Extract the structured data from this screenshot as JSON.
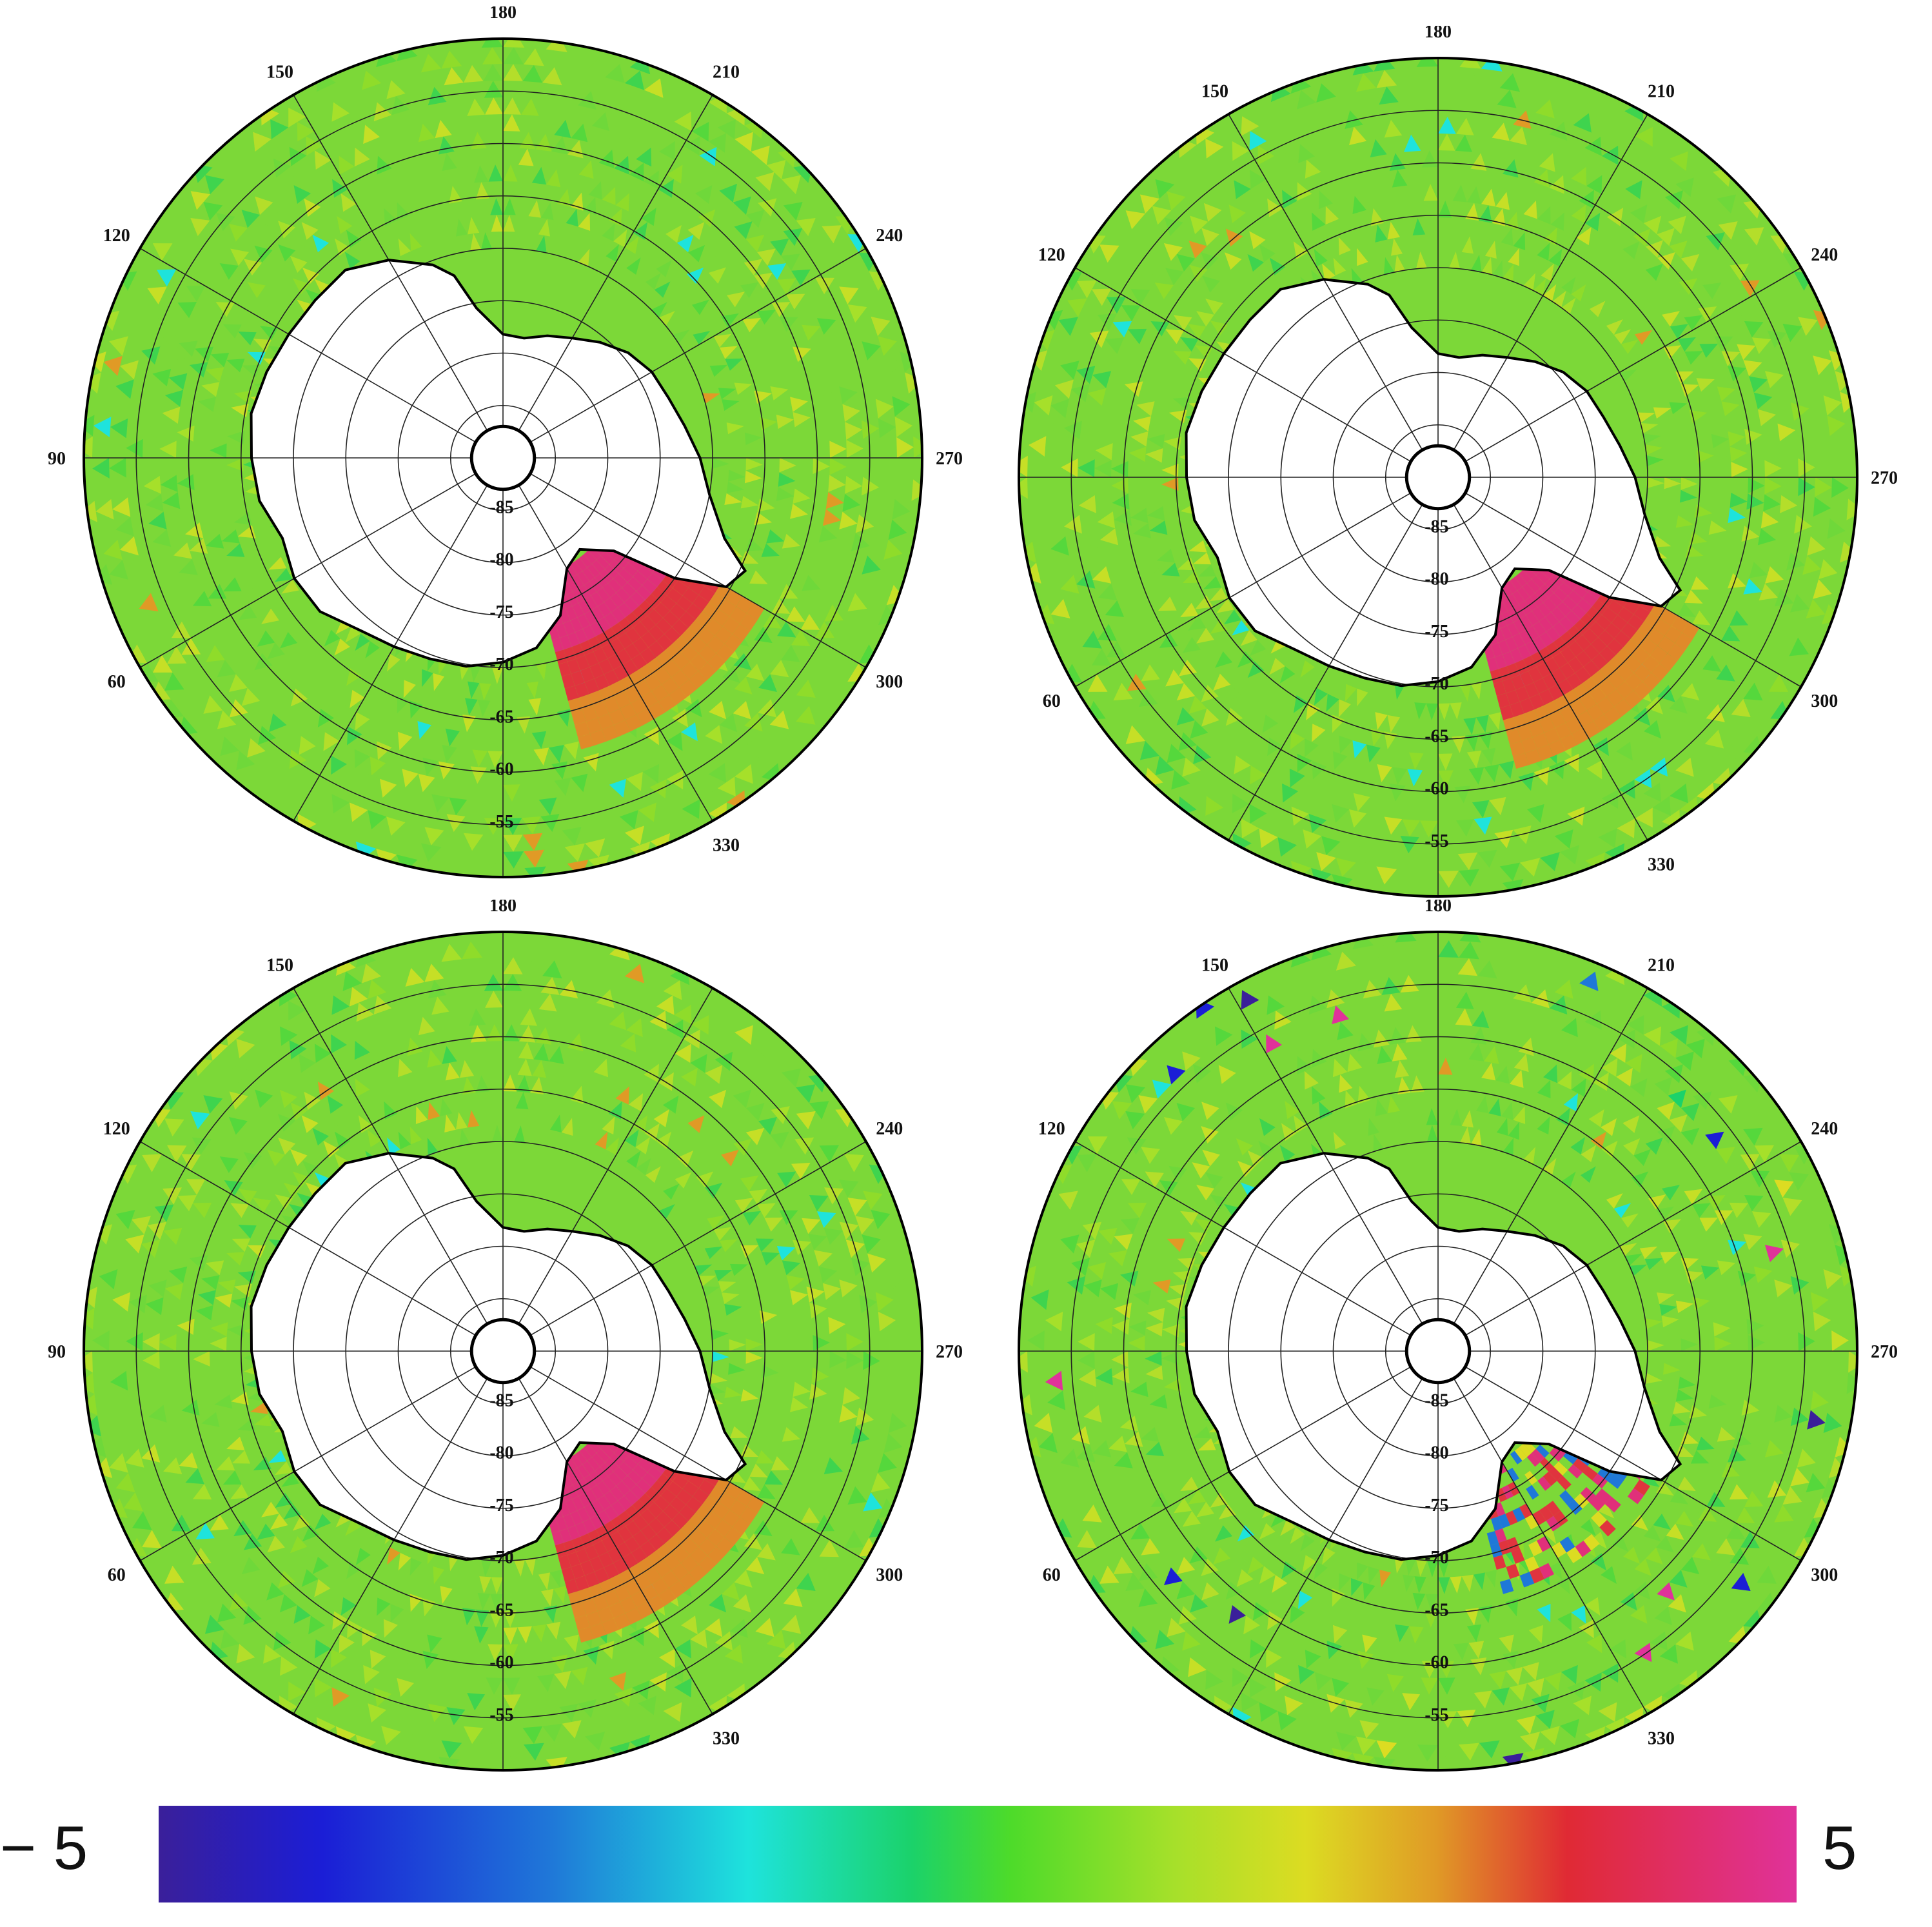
{
  "panels": [
    {
      "id": "top-left",
      "lon_labels": [
        "180",
        "210",
        "240",
        "270",
        "300",
        "330",
        "60",
        "90",
        "120",
        "150"
      ],
      "anomaly": "strong"
    },
    {
      "id": "top-right",
      "lon_labels": [
        "180",
        "210",
        "240",
        "270",
        "300",
        "330",
        "60",
        "120",
        "150"
      ],
      "anomaly": "strong"
    },
    {
      "id": "bottom-left",
      "lon_labels": [
        "180",
        "240",
        "270",
        "300",
        "330",
        "60",
        "90",
        "120",
        "150"
      ],
      "anomaly": "strong"
    },
    {
      "id": "bottom-right",
      "lon_labels": [
        "180",
        "210",
        "240",
        "270",
        "300",
        "330",
        "60",
        "120",
        "150"
      ],
      "anomaly": "noisy"
    }
  ],
  "lat_labels": [
    "-85",
    "-80",
    "-75",
    "-70",
    "-65",
    "-60",
    "-55"
  ],
  "colorbar": {
    "min_label": "− 5",
    "max_label": "5",
    "colors": [
      "#3a1f9a",
      "#1b1ed6",
      "#1f78d8",
      "#1ee3dc",
      "#1bd26a",
      "#4ddb2a",
      "#a6e02a",
      "#dcdc22",
      "#e09a26",
      "#e02a34",
      "#e0329a"
    ]
  },
  "colors": {
    "ocean": "#7cd838",
    "land": "#ffffff",
    "coast": "#000000",
    "anomaly_core": "#e0307a",
    "anomaly_edge": "#e08a2a"
  }
}
